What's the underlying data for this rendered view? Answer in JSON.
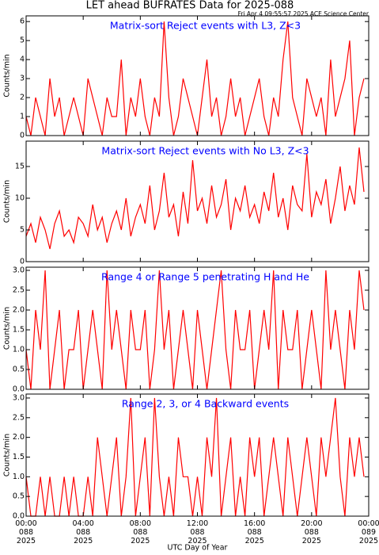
{
  "title": "LET ahead BUFRATES Data for 2025-088",
  "timestamp": "Fri Apr  4 09:55:57 2025 ACE Science Center",
  "chart_data": [
    {
      "type": "line",
      "title": "Matrix-sort Reject events with L3, Z<3",
      "ylabel": "Counts/min",
      "color": "#ff0000",
      "x": [
        0,
        20,
        40,
        60,
        80,
        100,
        120,
        140,
        160,
        180,
        200,
        220,
        240,
        260,
        280,
        300,
        320,
        340,
        360,
        380,
        400,
        420,
        440,
        460,
        480,
        500,
        520,
        540,
        560,
        580,
        600,
        620,
        640,
        660,
        680,
        700,
        720,
        740,
        760,
        780,
        800,
        820,
        840,
        860,
        880,
        900,
        920,
        940,
        960,
        980,
        1000,
        1020,
        1040,
        1060,
        1080,
        1100,
        1120,
        1140,
        1160,
        1180,
        1200,
        1220,
        1240,
        1260,
        1280,
        1300,
        1320,
        1340,
        1360,
        1380,
        1400,
        1420
      ],
      "values": [
        1,
        0,
        2,
        1,
        0,
        3,
        1,
        2,
        0,
        1,
        2,
        1,
        0,
        3,
        2,
        1,
        0,
        2,
        1,
        1,
        4,
        0,
        2,
        1,
        3,
        1,
        0,
        2,
        1,
        6,
        2,
        0,
        1,
        3,
        2,
        1,
        0,
        2,
        4,
        1,
        2,
        0,
        1,
        3,
        1,
        2,
        0,
        1,
        2,
        3,
        1,
        0,
        2,
        1,
        4,
        6,
        2,
        1,
        0,
        3,
        2,
        1,
        2,
        0,
        4,
        1,
        2,
        3,
        5,
        0,
        2,
        3
      ],
      "xlim": [
        0,
        1440
      ],
      "xticks": [
        0,
        240,
        480,
        720,
        960,
        1200,
        1440
      ],
      "ylim": [
        0,
        6.3
      ],
      "yticks": [
        0,
        1,
        2,
        3,
        4,
        5,
        6
      ]
    },
    {
      "type": "line",
      "title": "Matrix-sort Reject events with No L3, Z<3",
      "ylabel": "Counts/min",
      "color": "#ff0000",
      "x": [
        0,
        20,
        40,
        60,
        80,
        100,
        120,
        140,
        160,
        180,
        200,
        220,
        240,
        260,
        280,
        300,
        320,
        340,
        360,
        380,
        400,
        420,
        440,
        460,
        480,
        500,
        520,
        540,
        560,
        580,
        600,
        620,
        640,
        660,
        680,
        700,
        720,
        740,
        760,
        780,
        800,
        820,
        840,
        860,
        880,
        900,
        920,
        940,
        960,
        980,
        1000,
        1020,
        1040,
        1060,
        1080,
        1100,
        1120,
        1140,
        1160,
        1180,
        1200,
        1220,
        1240,
        1260,
        1280,
        1300,
        1320,
        1340,
        1360,
        1380,
        1400,
        1420
      ],
      "values": [
        4,
        6,
        3,
        7,
        5,
        2,
        6,
        8,
        4,
        5,
        3,
        7,
        6,
        4,
        9,
        5,
        7,
        3,
        6,
        8,
        5,
        10,
        4,
        7,
        9,
        6,
        12,
        5,
        8,
        14,
        7,
        9,
        4,
        11,
        6,
        16,
        8,
        10,
        6,
        12,
        7,
        9,
        13,
        5,
        10,
        8,
        12,
        7,
        9,
        6,
        11,
        8,
        14,
        7,
        10,
        5,
        12,
        9,
        8,
        17,
        7,
        11,
        9,
        13,
        6,
        10,
        15,
        8,
        12,
        9,
        18,
        11
      ],
      "xlim": [
        0,
        1440
      ],
      "xticks": [
        0,
        240,
        480,
        720,
        960,
        1200,
        1440
      ],
      "ylim": [
        0,
        19
      ],
      "yticks": [
        0,
        5,
        10,
        15
      ]
    },
    {
      "type": "line",
      "title": "Range 4 or Range 5 penetrating H and He",
      "ylabel": "Counts/min",
      "color": "#ff0000",
      "x": [
        0,
        20,
        40,
        60,
        80,
        100,
        120,
        140,
        160,
        180,
        200,
        220,
        240,
        260,
        280,
        300,
        320,
        340,
        360,
        380,
        400,
        420,
        440,
        460,
        480,
        500,
        520,
        540,
        560,
        580,
        600,
        620,
        640,
        660,
        680,
        700,
        720,
        740,
        760,
        780,
        800,
        820,
        840,
        860,
        880,
        900,
        920,
        940,
        960,
        980,
        1000,
        1020,
        1040,
        1060,
        1080,
        1100,
        1120,
        1140,
        1160,
        1180,
        1200,
        1220,
        1240,
        1260,
        1280,
        1300,
        1320,
        1340,
        1360,
        1380,
        1400,
        1420
      ],
      "values": [
        1,
        0,
        2,
        1,
        3,
        0,
        1,
        2,
        0,
        1,
        1,
        2,
        0,
        1,
        2,
        1,
        0,
        3,
        1,
        2,
        1,
        0,
        2,
        1,
        1,
        2,
        0,
        1,
        3,
        1,
        2,
        0,
        1,
        2,
        1,
        0,
        2,
        1,
        0,
        1,
        2,
        3,
        1,
        0,
        2,
        1,
        1,
        2,
        0,
        1,
        2,
        1,
        3,
        0,
        2,
        1,
        1,
        2,
        0,
        1,
        2,
        1,
        0,
        3,
        1,
        2,
        1,
        0,
        2,
        1,
        3,
        2
      ],
      "xlim": [
        0,
        1440
      ],
      "xticks": [
        0,
        240,
        480,
        720,
        960,
        1200,
        1440
      ],
      "ylim": [
        0,
        3.08
      ],
      "yticks": [
        {
          "value": 0,
          "label": "0.0"
        },
        {
          "value": 0.5,
          "label": "0.5"
        },
        {
          "value": 1,
          "label": "1.0"
        },
        {
          "value": 1.5,
          "label": "1.5"
        },
        {
          "value": 2,
          "label": "2.0"
        },
        {
          "value": 2.5,
          "label": "2.5"
        },
        {
          "value": 3,
          "label": "3.0"
        }
      ]
    },
    {
      "type": "line",
      "title": "Range 2, 3, or 4 Backward events",
      "ylabel": "Counts/min",
      "xlabel": "UTC Day of Year",
      "color": "#ff0000",
      "x": [
        0,
        20,
        40,
        60,
        80,
        100,
        120,
        140,
        160,
        180,
        200,
        220,
        240,
        260,
        280,
        300,
        320,
        340,
        360,
        380,
        400,
        420,
        440,
        460,
        480,
        500,
        520,
        540,
        560,
        580,
        600,
        620,
        640,
        660,
        680,
        700,
        720,
        740,
        760,
        780,
        800,
        820,
        840,
        860,
        880,
        900,
        920,
        940,
        960,
        980,
        1000,
        1020,
        1040,
        1060,
        1080,
        1100,
        1120,
        1140,
        1160,
        1180,
        1200,
        1220,
        1240,
        1260,
        1280,
        1300,
        1320,
        1340,
        1360,
        1380,
        1400,
        1420
      ],
      "values": [
        1,
        0,
        0,
        1,
        0,
        1,
        0,
        0,
        1,
        0,
        1,
        0,
        0,
        1,
        0,
        2,
        1,
        0,
        1,
        2,
        0,
        1,
        3,
        0,
        1,
        2,
        0,
        3,
        1,
        0,
        1,
        0,
        2,
        1,
        1,
        0,
        1,
        0,
        2,
        1,
        3,
        0,
        1,
        2,
        0,
        1,
        0,
        2,
        1,
        2,
        0,
        1,
        2,
        1,
        0,
        2,
        1,
        0,
        1,
        2,
        1,
        0,
        2,
        1,
        2,
        3,
        1,
        0,
        2,
        1,
        2,
        1
      ],
      "xlim": [
        0,
        1440
      ],
      "xticks": [
        {
          "value": 0,
          "label": "00:00\n088\n2025"
        },
        {
          "value": 240,
          "label": "04:00\n088\n2025"
        },
        {
          "value": 480,
          "label": "08:00\n088\n2025"
        },
        {
          "value": 720,
          "label": "12:00\n088\n2025"
        },
        {
          "value": 960,
          "label": "16:00\n088\n2025"
        },
        {
          "value": 1200,
          "label": "20:00\n088\n2025"
        },
        {
          "value": 1440,
          "label": "00:00\n089\n2025"
        }
      ],
      "ylim": [
        0,
        3.1
      ],
      "yticks": [
        {
          "value": 0,
          "label": "0.0"
        },
        {
          "value": 0.5,
          "label": "0.5"
        },
        {
          "value": 1,
          "label": "1.0"
        },
        {
          "value": 1.5,
          "label": "1.5"
        },
        {
          "value": 2,
          "label": "2.0"
        },
        {
          "value": 2.5,
          "label": "2.5"
        },
        {
          "value": 3,
          "label": "3.0"
        }
      ]
    }
  ]
}
